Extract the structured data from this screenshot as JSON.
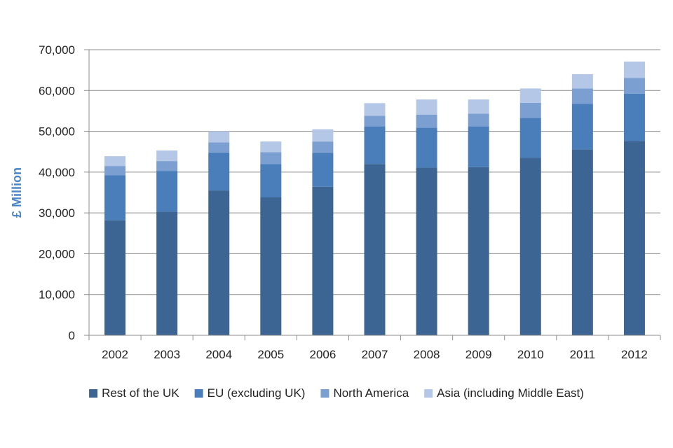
{
  "chart_data": {
    "type": "bar",
    "stacked": true,
    "title": "",
    "xlabel": "",
    "ylabel": "£ Million",
    "ylim": [
      0,
      70000
    ],
    "y_ticks": [
      0,
      10000,
      20000,
      30000,
      40000,
      50000,
      60000,
      70000
    ],
    "y_tick_labels": [
      "0",
      "10,000",
      "20,000",
      "30,000",
      "40,000",
      "50,000",
      "60,000",
      "70,000"
    ],
    "grid": true,
    "legend_position": "bottom",
    "categories": [
      "2002",
      "2003",
      "2004",
      "2005",
      "2006",
      "2007",
      "2008",
      "2009",
      "2010",
      "2011",
      "2012"
    ],
    "series": [
      {
        "name": "Rest of the UK",
        "color": "#3d6594",
        "values": [
          28200,
          30300,
          35500,
          33800,
          36400,
          42000,
          41100,
          41200,
          43500,
          45600,
          47600
        ]
      },
      {
        "name": "EU (excluding UK)",
        "color": "#4a7ebb",
        "values": [
          11000,
          10000,
          9300,
          8200,
          8300,
          9200,
          9800,
          10000,
          9800,
          11100,
          11600
        ]
      },
      {
        "name": "North America",
        "color": "#7b9fd1",
        "values": [
          2300,
          2400,
          2500,
          2900,
          2800,
          2600,
          3200,
          3100,
          3700,
          3800,
          3900
        ]
      },
      {
        "name": "Asia (including Middle East)",
        "color": "#b4c7e6",
        "values": [
          2400,
          2600,
          2700,
          2600,
          3000,
          3100,
          3700,
          3500,
          3500,
          3500,
          4000
        ]
      }
    ]
  }
}
